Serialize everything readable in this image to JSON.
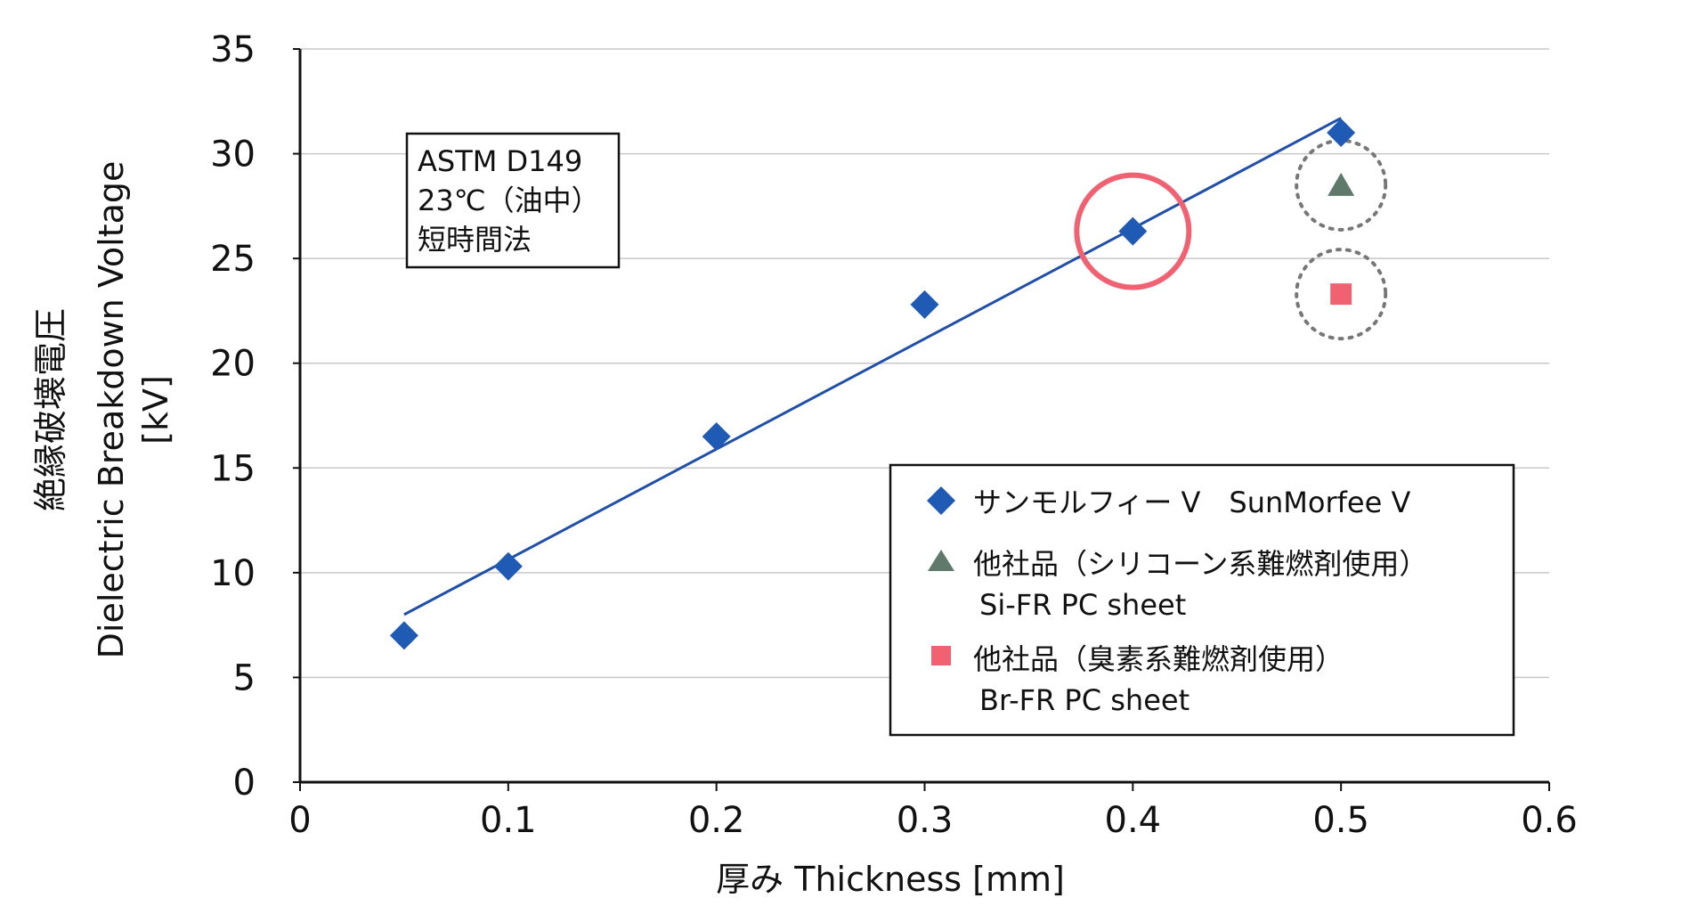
{
  "chart_data": {
    "type": "scatter",
    "xlabel": "厚み  Thickness [mm]",
    "ylabel_line1": "絶縁破壊電圧",
    "ylabel_line2": "Dielectric Breakdown Voltage",
    "ylabel_line3": "[kV]",
    "xlim": [
      0,
      0.6
    ],
    "ylim": [
      0,
      35
    ],
    "x_ticks": [
      "0",
      "0.1",
      "0.2",
      "0.3",
      "0.4",
      "0.5",
      "0.6"
    ],
    "y_ticks": [
      "0",
      "5",
      "10",
      "15",
      "20",
      "25",
      "30",
      "35"
    ],
    "grid": "horizontal",
    "series": [
      {
        "name": "サンモルフィー V　SunMorfee V",
        "marker": "diamond",
        "color": "#1f5bb5",
        "x": [
          0.05,
          0.1,
          0.2,
          0.3,
          0.4,
          0.5
        ],
        "y": [
          7.0,
          10.3,
          16.5,
          22.8,
          26.3,
          31.0
        ]
      },
      {
        "name": "他社品（シリコーン系難燃剤使用）",
        "name_en": "Si-FR PC sheet",
        "marker": "triangle",
        "color": "#5f7a6a",
        "x": [
          0.5
        ],
        "y": [
          28.5
        ]
      },
      {
        "name": "他社品（臭素系難燃剤使用）",
        "name_en": "Br-FR PC sheet",
        "marker": "square",
        "color": "#f06272",
        "x": [
          0.5
        ],
        "y": [
          23.3
        ]
      }
    ],
    "trendline": {
      "color": "#1f4fa8",
      "x": [
        0.05,
        0.5
      ],
      "y": [
        8.0,
        31.7
      ]
    },
    "highlight_circle": {
      "x": 0.4,
      "y": 26.3,
      "color": "#f06272"
    },
    "dotted_circles": [
      {
        "x": 0.5,
        "y": 28.5,
        "color": "#777777"
      },
      {
        "x": 0.5,
        "y": 23.3,
        "color": "#777777"
      }
    ],
    "annotation": [
      "ASTM D149",
      "23℃（油中）",
      "短時間法"
    ],
    "legend_position": "lower-right"
  }
}
